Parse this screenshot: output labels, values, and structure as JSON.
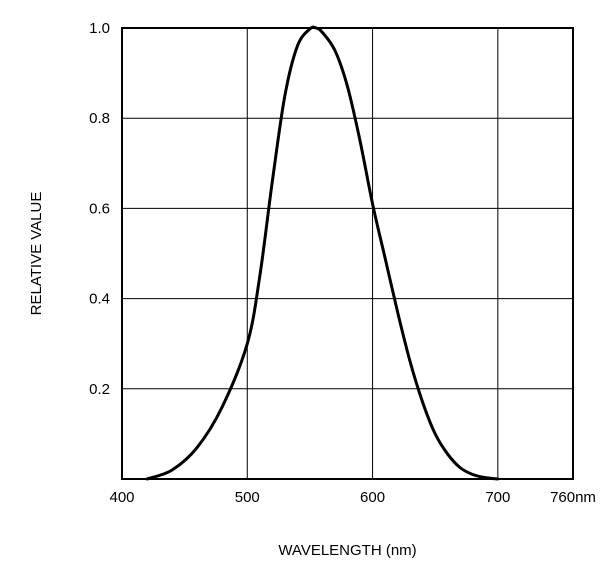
{
  "chart_data": {
    "type": "line",
    "title": "",
    "xlabel": "WAVELENGTH (nm)",
    "ylabel": "RELATIVE VALUE",
    "xlim": [
      400,
      760
    ],
    "ylim": [
      0,
      1.0
    ],
    "grid": true,
    "x_ticks": [
      400,
      500,
      600,
      700,
      760
    ],
    "x_tick_labels": [
      "400",
      "500",
      "600",
      "700",
      "760nm"
    ],
    "y_ticks": [
      0.2,
      0.4,
      0.6,
      0.8,
      1.0
    ],
    "y_tick_labels": [
      "0.2",
      "0.4",
      "0.6",
      "0.8",
      "1.0"
    ],
    "series": [
      {
        "x": [
          420,
          440,
          460,
          480,
          500,
          510,
          520,
          530,
          540,
          550,
          555,
          560,
          570,
          580,
          590,
          600,
          610,
          620,
          630,
          640,
          650,
          660,
          670,
          680,
          690,
          700
        ],
        "y": [
          0.0,
          0.02,
          0.07,
          0.16,
          0.3,
          0.45,
          0.66,
          0.85,
          0.96,
          0.998,
          1.0,
          0.99,
          0.95,
          0.87,
          0.75,
          0.61,
          0.49,
          0.37,
          0.26,
          0.17,
          0.1,
          0.055,
          0.025,
          0.01,
          0.003,
          0.0
        ]
      }
    ]
  },
  "colors": {
    "curve": "#000000",
    "grid": "#000000",
    "frame": "#000000"
  }
}
